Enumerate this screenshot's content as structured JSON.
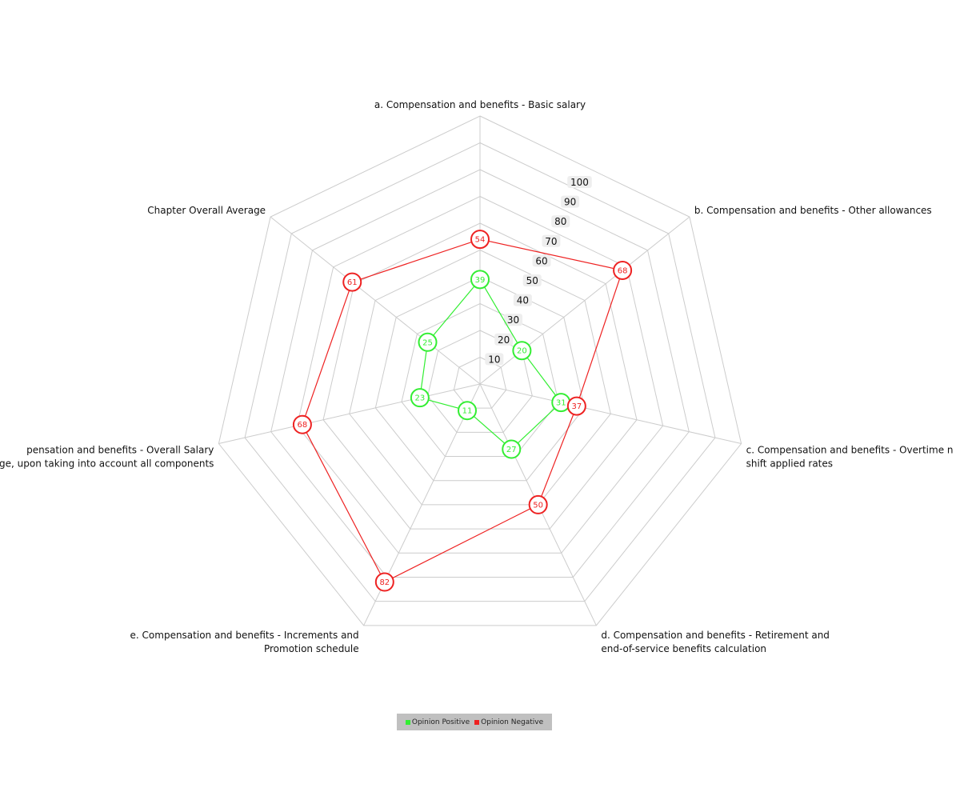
{
  "chart_data": {
    "type": "radar",
    "axes": [
      [
        "a. Compensation and benefits - Basic salary"
      ],
      [
        "b. Compensation and benefits - Other allowances"
      ],
      [
        "c. Compensation and benefits - Overtime  n",
        "shift applied rates"
      ],
      [
        "d. Compensation and benefits - Retirement and",
        "end-of-service benefits calculation"
      ],
      [
        "e. Compensation and benefits - Increments and",
        "Promotion schedule"
      ],
      [
        "pensation and benefits - Overall Salary",
        "ge, upon taking into account all components"
      ],
      [
        "Chapter Overall Average"
      ]
    ],
    "rlim": [
      0,
      100
    ],
    "ticks": [
      "10",
      "20",
      "30",
      "40",
      "50",
      "60",
      "70",
      "80",
      "90",
      "100"
    ],
    "series": [
      {
        "name": "Opinion Positive",
        "color": "#33ee33",
        "values": [
          39,
          20,
          31,
          27,
          11,
          23,
          25
        ]
      },
      {
        "name": "Opinion Negative",
        "color": "#ee2222",
        "values": [
          54,
          68,
          37,
          50,
          82,
          68,
          61
        ]
      }
    ],
    "grid": true,
    "legend": "bottom-center"
  }
}
